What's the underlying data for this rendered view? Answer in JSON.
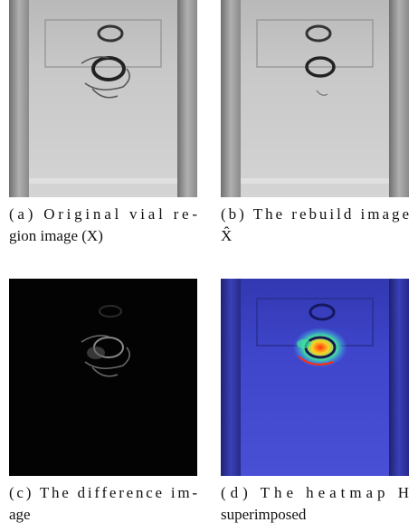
{
  "figure": {
    "subfigures": [
      {
        "caption_lines": [
          "(a) Original vial re-",
          "gion image (X)"
        ]
      },
      {
        "caption_lines": [
          "(b) The rebuild image",
          "X̂"
        ]
      },
      {
        "caption_lines": [
          "(c) The difference im-",
          "age"
        ]
      },
      {
        "caption_lines": [
          "(d) The heatmap H",
          "superimposed"
        ]
      }
    ]
  }
}
